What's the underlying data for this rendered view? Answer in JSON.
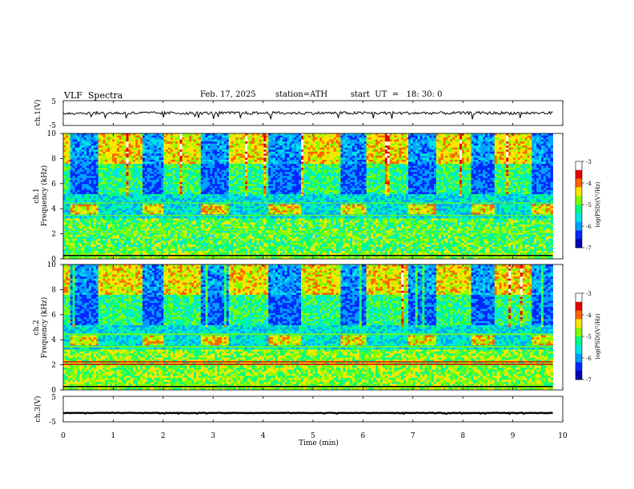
{
  "header": {
    "title": "VLF  Spectra",
    "date": "Feb. 17, 2025",
    "station": "station=ATH",
    "start_ut": "start  UT  =   18: 30: 0"
  },
  "panels": {
    "ch1_wave": {
      "ylabel": "ch.1(V)",
      "yticks": [
        "5",
        "-5"
      ]
    },
    "ch1_spec": {
      "ylabel": "ch.1\nFrequency  (kHz)",
      "ylabel_ch": "ch.1",
      "ylabel_freq": "Frequency  (kHz)",
      "yticks": [
        "0",
        "2",
        "4",
        "6",
        "8",
        "10"
      ]
    },
    "ch2_spec": {
      "ylabel_ch": "ch.2",
      "ylabel_freq": "Frequency  (kHz)",
      "yticks": [
        "0",
        "2",
        "4",
        "6",
        "8",
        "10"
      ]
    },
    "ch3_wave": {
      "ylabel": "ch.3(V)",
      "yticks": [
        "5",
        "-5"
      ]
    }
  },
  "colorbar": {
    "label": "log(PSD)(V²/Hz)",
    "ticks": [
      "-3",
      "-4",
      "-5",
      "-6",
      "-7"
    ]
  },
  "colors": {
    "cmap": [
      "#000000",
      "#0000b4",
      "#0028ff",
      "#00a0ff",
      "#00e6e6",
      "#00ff80",
      "#80ff00",
      "#ffe600",
      "#ff6400",
      "#e60000",
      "#ffffff"
    ]
  },
  "chart_data": {
    "type": "heatmap",
    "xlabel": "Time  (min)",
    "xticks": [
      "0",
      "1",
      "2",
      "3",
      "4",
      "5",
      "6",
      "7",
      "8",
      "9",
      "10"
    ],
    "xlim": [
      0,
      10
    ],
    "ylim_khz": [
      0,
      10
    ],
    "wave_ylim_v": [
      -5,
      5
    ],
    "color_range_log_psd": [
      -7,
      -3
    ],
    "data_end_min": 9.8,
    "ch1_v_approx": 0,
    "ch3_v_approx": -1.5,
    "quiet_segments_min": [
      [
        0.1,
        0.7
      ],
      [
        1.55,
        2.0
      ],
      [
        2.75,
        3.3
      ],
      [
        4.1,
        4.75
      ],
      [
        5.55,
        6.05
      ],
      [
        6.9,
        7.45
      ],
      [
        8.15,
        8.6
      ],
      [
        9.35,
        9.8
      ]
    ],
    "tone_bands_khz": [
      2.1,
      2.3,
      3.5,
      4.5
    ]
  }
}
